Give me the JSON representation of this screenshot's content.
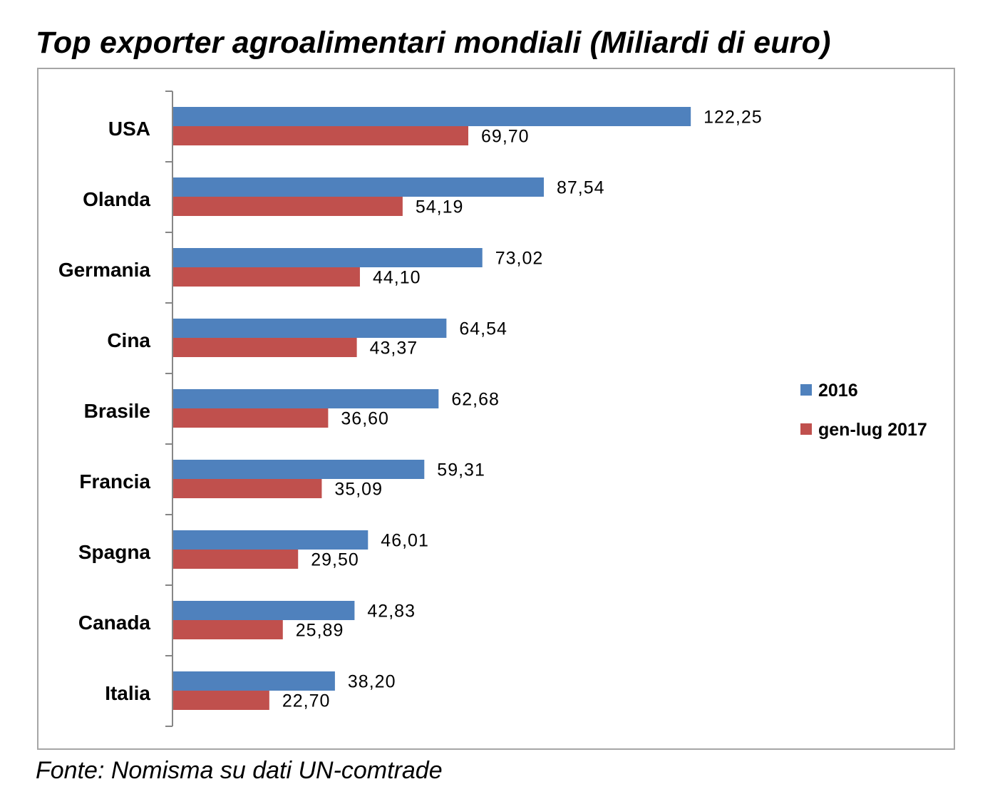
{
  "title": "Top exporter agroalimentari mondiali (Miliardi di euro)",
  "source": "Fonte: Nomisma su dati UN-comtrade",
  "chart_data": {
    "type": "bar",
    "orientation": "horizontal",
    "title": "Top exporter agroalimentari mondiali (Miliardi di euro)",
    "categories": [
      "USA",
      "Olanda",
      "Germania",
      "Cina",
      "Brasile",
      "Francia",
      "Spagna",
      "Canada",
      "Italia"
    ],
    "series": [
      {
        "name": "2016",
        "color": "#4f81bd",
        "values": [
          122.25,
          87.54,
          73.02,
          64.54,
          62.68,
          59.31,
          46.01,
          42.83,
          38.2
        ],
        "labels": [
          "122,25",
          "87,54",
          "73,02",
          "64,54",
          "62,68",
          "59,31",
          "46,01",
          "42,83",
          "38,20"
        ]
      },
      {
        "name": "gen-lug 2017",
        "color": "#c0504d",
        "values": [
          69.7,
          54.19,
          44.1,
          43.37,
          36.6,
          35.09,
          29.5,
          25.89,
          22.7
        ],
        "labels": [
          "69,70",
          "54,19",
          "44,10",
          "43,37",
          "36,60",
          "35,09",
          "29,50",
          "25,89",
          "22,70"
        ]
      }
    ],
    "xlim": [
      0,
      145
    ],
    "grid": false,
    "legend_position": "right"
  }
}
